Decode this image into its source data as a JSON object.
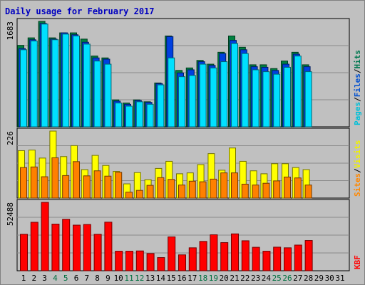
{
  "chart_data": {
    "type": "bar",
    "title": "Daily usage for February 2017",
    "days": [
      "1",
      "2",
      "3",
      "4",
      "5",
      "6",
      "7",
      "8",
      "9",
      "10",
      "11",
      "12",
      "13",
      "14",
      "15",
      "16",
      "17",
      "18",
      "19",
      "20",
      "21",
      "22",
      "23",
      "24",
      "25",
      "26",
      "27",
      "28",
      "29",
      "30",
      "31"
    ],
    "weekend_days": [
      4,
      5,
      11,
      12,
      18,
      19,
      25,
      26
    ],
    "panels": [
      {
        "id": "top",
        "max_label": "1683",
        "ylim": [
          0,
          1683
        ],
        "legend": [
          {
            "text": "Pages",
            "color": "#00c0d8"
          },
          {
            "text": "/",
            "color": "#000000"
          },
          {
            "text": "Files",
            "color": "#0050d0"
          },
          {
            "text": "/",
            "color": "#000000"
          },
          {
            "text": "Hits",
            "color": "#007850"
          }
        ],
        "series": [
          {
            "name": "Hits",
            "color": "#008040",
            "values": [
              1300,
              1420,
              1683,
              1420,
              1500,
              1500,
              1400,
              1130,
              1100,
              430,
              380,
              430,
              400,
              700,
              1450,
              900,
              940,
              1060,
              1000,
              1190,
              1450,
              1270,
              990,
              990,
              930,
              1050,
              1190,
              990
            ]
          },
          {
            "name": "Files",
            "color": "#0040e0",
            "values": [
              1250,
              1390,
              1650,
              1400,
              1500,
              1470,
              1350,
              1100,
              1080,
              410,
              360,
              420,
              390,
              690,
              1440,
              860,
              910,
              1040,
              980,
              1170,
              1380,
              1230,
              960,
              950,
              900,
              1000,
              1160,
              960
            ]
          },
          {
            "name": "Pages",
            "color": "#00e0ff",
            "values": [
              1230,
              1370,
              1640,
              1390,
              1480,
              1450,
              1320,
              1050,
              1000,
              380,
              330,
              400,
              360,
              670,
              1100,
              800,
              820,
              1000,
              940,
              1040,
              1330,
              1170,
              910,
              880,
              840,
              950,
              1130,
              880
            ]
          }
        ]
      },
      {
        "id": "middle",
        "max_label": "226",
        "ylim": [
          0,
          226
        ],
        "legend": [
          {
            "text": "Sites",
            "color": "#ff8800"
          },
          {
            "text": "/",
            "color": "#000000"
          },
          {
            "text": "Visits",
            "color": "#f0f000"
          }
        ],
        "series": [
          {
            "name": "Visits",
            "color": "#ffff00",
            "values": [
              160,
              162,
              135,
              226,
              140,
              177,
              96,
              144,
              110,
              90,
              48,
              86,
              62,
              100,
              124,
              82,
              85,
              113,
              150,
              94,
              169,
              124,
              92,
              82,
              116,
              116,
              103,
              96
            ]
          },
          {
            "name": "Sites",
            "color": "#ff8000",
            "values": [
              103,
              105,
              72,
              136,
              76,
              123,
              75,
              92,
              74,
              87,
              20,
              26,
              43,
              69,
              63,
              44,
              57,
              55,
              64,
              85,
              85,
              47,
              44,
              50,
              58,
              71,
              68,
              44
            ]
          }
        ]
      },
      {
        "id": "bottom",
        "max_label": "52488",
        "ylim": [
          0,
          52488
        ],
        "legend": [
          {
            "text": "KBF",
            "color": "#ff0000"
          }
        ],
        "series": [
          {
            "name": "KBytes",
            "color": "#ff0000",
            "values": [
              28000,
              37200,
              52488,
              35800,
              39500,
              35000,
              35500,
              28000,
              37300,
              15000,
              15000,
              15200,
              13200,
              10100,
              26000,
              12200,
              17600,
              22500,
              27600,
              21600,
              28300,
              23000,
              18000,
              15000,
              18100,
              17600,
              19700,
              23200
            ]
          }
        ]
      }
    ]
  }
}
